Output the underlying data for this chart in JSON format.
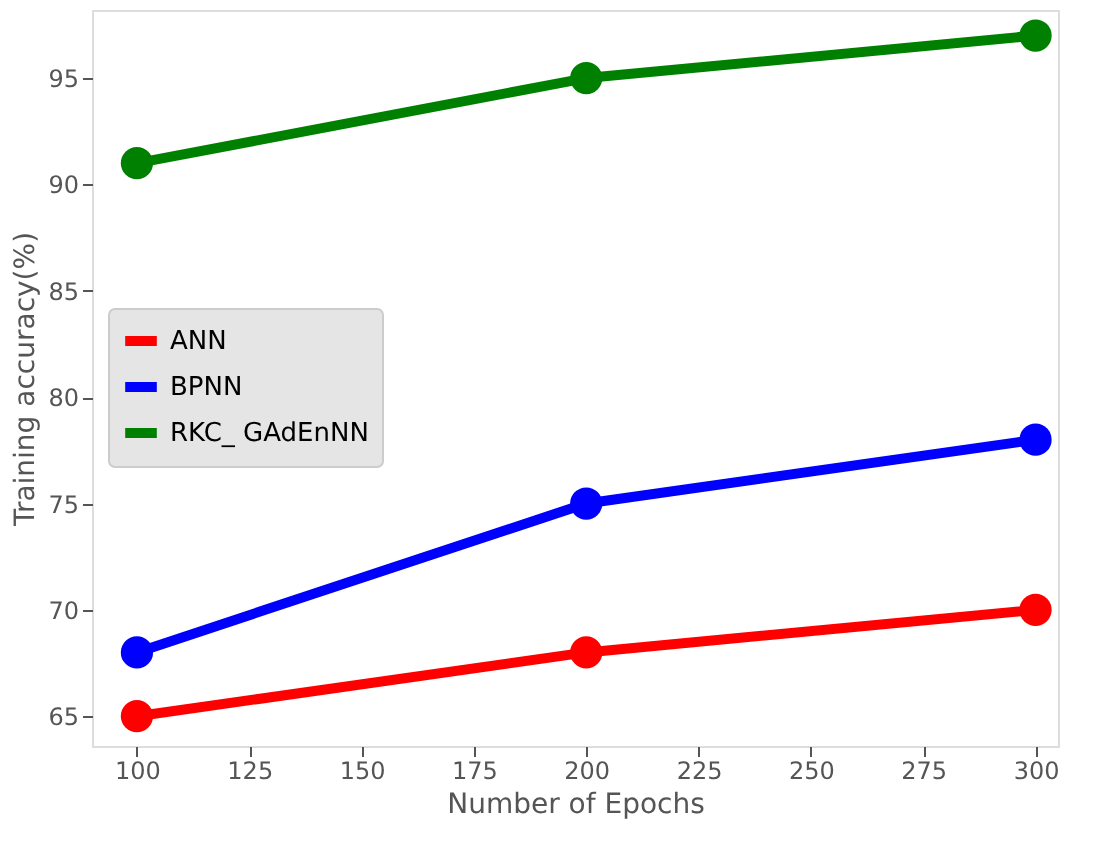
{
  "chart_data": {
    "type": "line",
    "xlabel": "Number of Epochs",
    "ylabel": "Training  accuracy(%)",
    "x": [
      100,
      200,
      300
    ],
    "series": [
      {
        "name": "ANN",
        "color": "#ff0000",
        "values": [
          65,
          68,
          70
        ]
      },
      {
        "name": "BPNN",
        "color": "#0000ff",
        "values": [
          68,
          75,
          78
        ]
      },
      {
        "name": "RKC_ GAdEnNN",
        "color": "#008000",
        "values": [
          91,
          95,
          97
        ]
      }
    ],
    "xlim": [
      90,
      305
    ],
    "xticks": [
      100,
      125,
      150,
      175,
      200,
      225,
      250,
      275,
      300
    ],
    "ylim": [
      63.6,
      98.2
    ],
    "yticks": [
      65,
      70,
      75,
      80,
      85,
      90,
      95
    ],
    "grid": false,
    "legend": "center left",
    "marker": "circle",
    "line_style": "solid"
  }
}
